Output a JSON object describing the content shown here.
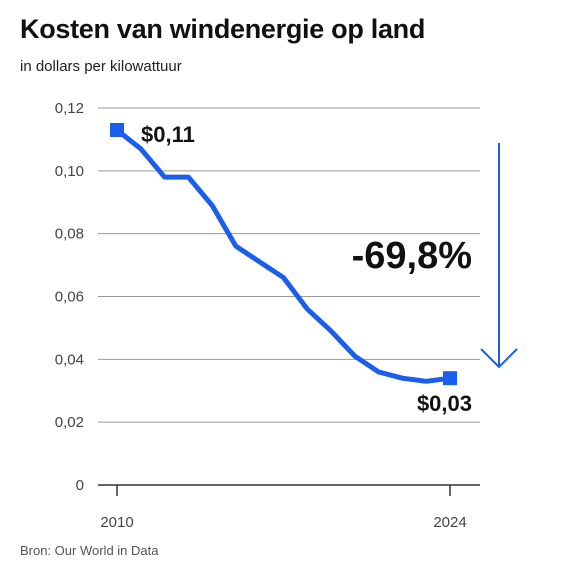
{
  "chart_data": {
    "type": "line",
    "title": "Kosten van windenergie op land",
    "subtitle": "in dollars per kilowattuur",
    "xlabel": "",
    "ylabel": "",
    "ylim": [
      0,
      0.12
    ],
    "xlim": [
      2010,
      2024
    ],
    "y_ticks": [
      0,
      0.02,
      0.04,
      0.06,
      0.08,
      0.1,
      0.12
    ],
    "y_tick_labels": [
      "0",
      "0,02",
      "0,04",
      "0,06",
      "0,08",
      "0,10",
      "0,12"
    ],
    "x_tick_labels": [
      "2010",
      "2024"
    ],
    "x_ticks": [
      2010,
      2024
    ],
    "grid": true,
    "series": [
      {
        "x": [
          2010,
          2011,
          2012,
          2013,
          2014,
          2015,
          2016,
          2017,
          2018,
          2019,
          2020,
          2021,
          2022,
          2023,
          2024
        ],
        "values": [
          0.113,
          0.107,
          0.098,
          0.098,
          0.089,
          0.076,
          0.071,
          0.066,
          0.056,
          0.049,
          0.041,
          0.036,
          0.034,
          0.033,
          0.034
        ]
      }
    ],
    "annotations": {
      "start_label": "$0,11",
      "end_label": "$0,03",
      "change_label": "-69,8%"
    },
    "colors": {
      "line": "#1A5FEB",
      "grid": "#9a9a9a",
      "axis": "#333333"
    }
  },
  "source": "Bron: Our World in Data"
}
